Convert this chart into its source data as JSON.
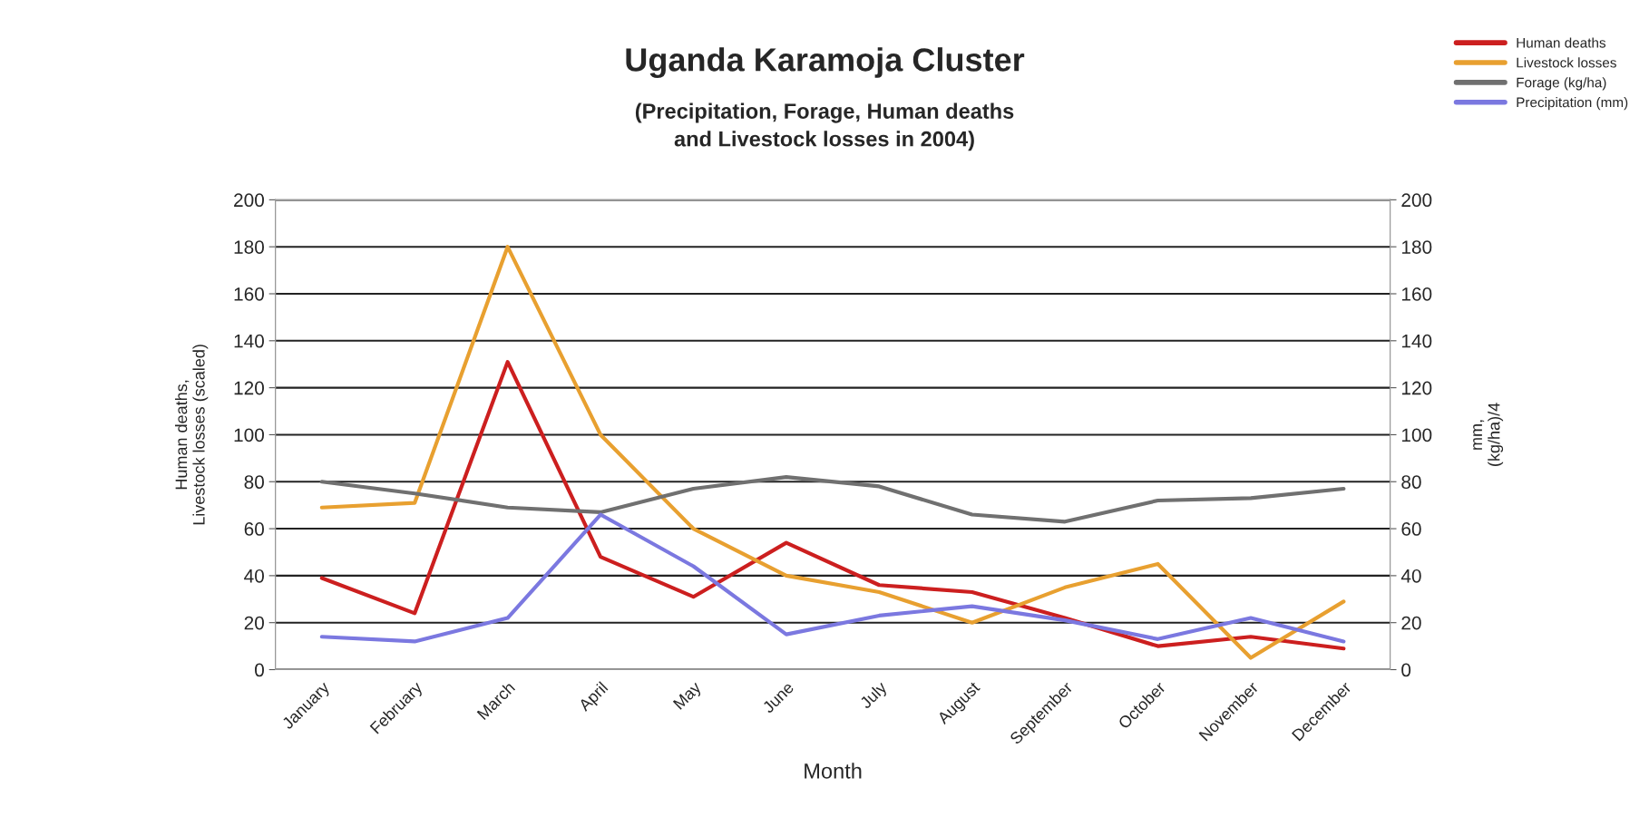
{
  "chart_data": {
    "type": "line",
    "title": "Uganda Karamoja Cluster",
    "subtitle": "(Precipitation, Forage, Human deaths\nand Livestock losses in 2004)",
    "xlabel": "Month",
    "ylabel": "Human deaths,\nLivestock losses (scaled)",
    "y2label": "mm,\n(kg/ha)/4",
    "categories": [
      "January",
      "February",
      "March",
      "April",
      "May",
      "June",
      "July",
      "August",
      "September",
      "October",
      "November",
      "December"
    ],
    "series": [
      {
        "name": "Human deaths",
        "color": "#cc1f1f",
        "values": [
          39,
          24,
          131,
          48,
          31,
          54,
          36,
          33,
          22,
          10,
          14,
          9
        ]
      },
      {
        "name": "Livestock losses",
        "color": "#e8a030",
        "values": [
          69,
          71,
          180,
          100,
          60,
          40,
          33,
          20,
          35,
          45,
          5,
          29
        ]
      },
      {
        "name": "Forage (kg/ha)",
        "color": "#707070",
        "values": [
          80,
          75,
          69,
          67,
          77,
          82,
          78,
          66,
          63,
          72,
          73,
          77
        ]
      },
      {
        "name": "Precipitation (mm)",
        "color": "#7b78e0",
        "values": [
          14,
          12,
          22,
          66,
          44,
          15,
          23,
          27,
          21,
          13,
          22,
          12
        ]
      }
    ],
    "ylim": [
      0,
      200
    ],
    "yticks": [
      0,
      20,
      40,
      60,
      80,
      100,
      120,
      140,
      160,
      180,
      200
    ],
    "y2lim": [
      0,
      200
    ],
    "y2ticks": [
      0,
      20,
      40,
      60,
      80,
      100,
      120,
      140,
      160,
      180,
      200
    ],
    "grid": "y",
    "legend": "top right",
    "marker": "none",
    "line_style": "solid"
  }
}
